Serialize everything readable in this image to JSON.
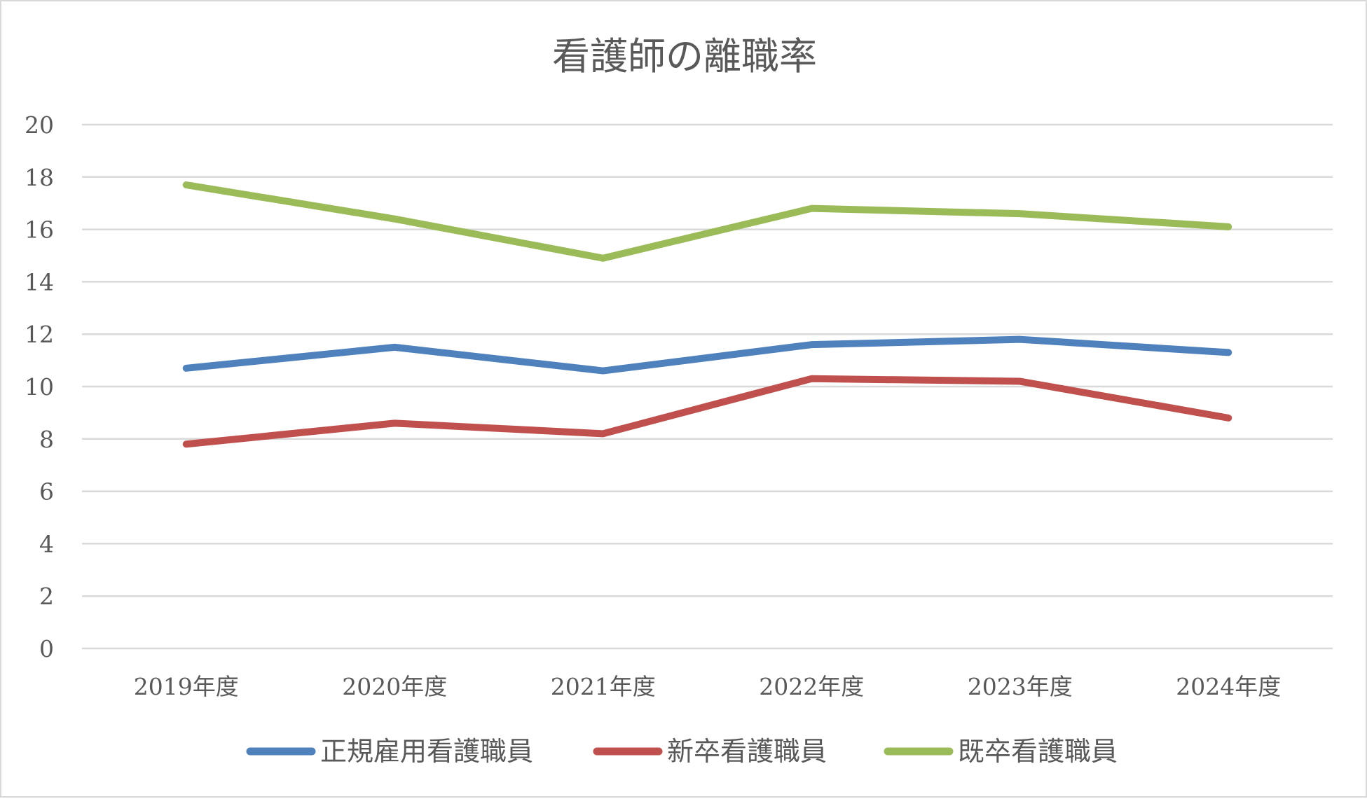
{
  "chart_data": {
    "type": "line",
    "title": "看護師の離職率",
    "xlabel": "",
    "ylabel": "",
    "categories": [
      "2019年度",
      "2020年度",
      "2021年度",
      "2022年度",
      "2023年度",
      "2024年度"
    ],
    "ylim": [
      0,
      20
    ],
    "yticks": [
      "0",
      "2",
      "4",
      "6",
      "8",
      "10",
      "12",
      "14",
      "16",
      "18",
      "20"
    ],
    "grid": true,
    "legend_position": "bottom",
    "series": [
      {
        "name": "正規雇用看護職員",
        "color": "#4f81bd",
        "values": [
          10.7,
          11.5,
          10.6,
          11.6,
          11.8,
          11.3
        ]
      },
      {
        "name": "新卒看護職員",
        "color": "#c0504d",
        "values": [
          7.8,
          8.6,
          8.2,
          10.3,
          10.2,
          8.8
        ]
      },
      {
        "name": "既卒看護職員",
        "color": "#9bbb59",
        "values": [
          17.7,
          16.4,
          14.9,
          16.8,
          16.6,
          16.1
        ]
      }
    ]
  }
}
